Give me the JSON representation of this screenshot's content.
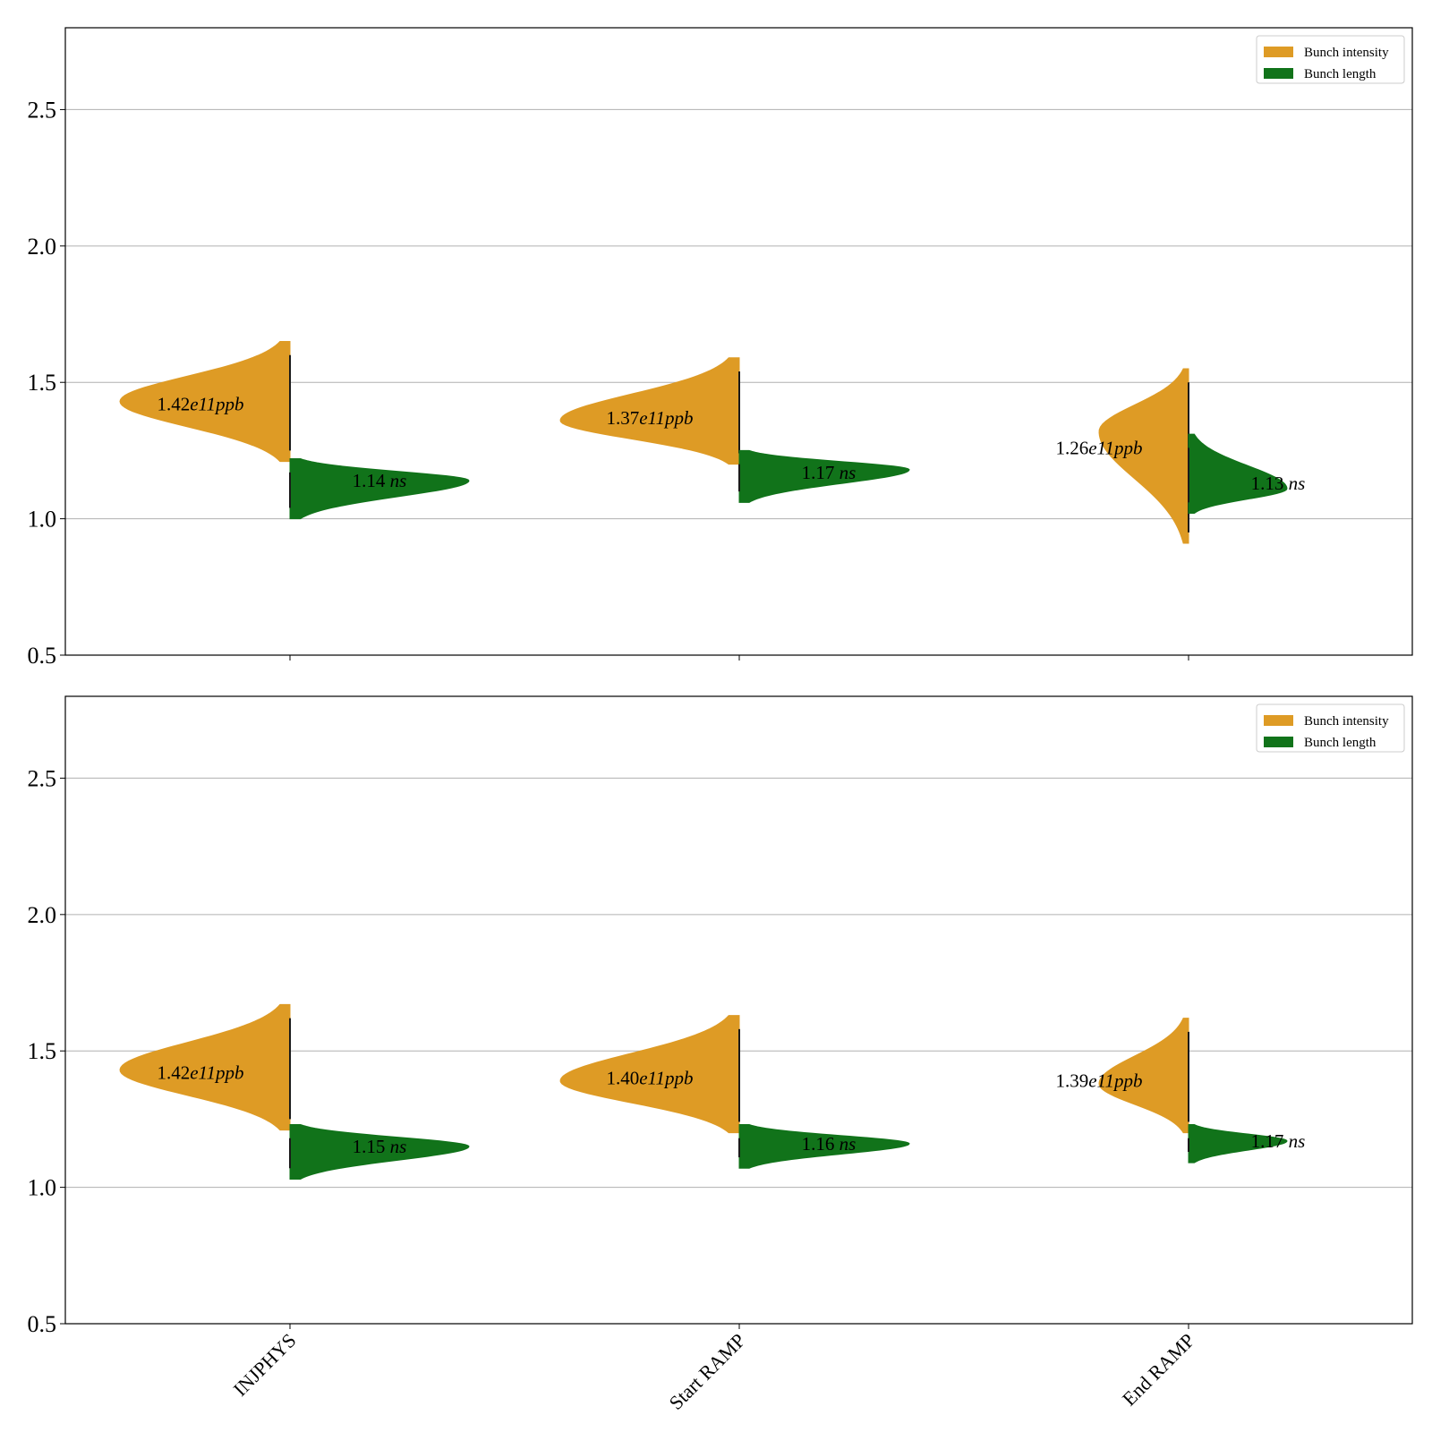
{
  "chart_data": [
    {
      "type": "violin",
      "ylim": [
        0.5,
        2.8
      ],
      "yticks": [
        0.5,
        1.0,
        1.5,
        2.0,
        2.5
      ],
      "grid": "y",
      "legend": "top-right",
      "legend_entries": [
        {
          "label": "Bunch intensity",
          "color": "#de9b25"
        },
        {
          "label": "Bunch length",
          "color": "#11731a"
        }
      ],
      "categories": [
        "INJPHYS",
        "Start RAMP",
        "End RAMP"
      ],
      "show_category_labels": false,
      "series": [
        {
          "name": "Bunch intensity",
          "color": "#de9b25",
          "side": "left",
          "distributions": [
            {
              "min": 1.21,
              "mode": 1.43,
              "max": 1.65,
              "label_number": "1.42",
              "label_mid": "e11",
              "label_unit": "ppb",
              "label_y": 1.42
            },
            {
              "min": 1.2,
              "mode": 1.36,
              "max": 1.59,
              "label_number": "1.37",
              "label_mid": "e11",
              "label_unit": "ppb",
              "label_y": 1.37
            },
            {
              "min": 0.91,
              "mode": 1.32,
              "max": 1.55,
              "label_number": "1.26",
              "label_mid": "e11",
              "label_unit": "ppb",
              "label_y": 1.26
            }
          ]
        },
        {
          "name": "Bunch length",
          "color": "#11731a",
          "side": "right",
          "distributions": [
            {
              "min": 1.0,
              "mode": 1.14,
              "max": 1.22,
              "label_number": "1.14",
              "label_mid": " ",
              "label_unit": "ns",
              "label_y": 1.14
            },
            {
              "min": 1.06,
              "mode": 1.18,
              "max": 1.25,
              "label_number": "1.17",
              "label_mid": " ",
              "label_unit": "ns",
              "label_y": 1.17
            },
            {
              "min": 1.02,
              "mode": 1.11,
              "max": 1.31,
              "label_number": "1.13",
              "label_mid": " ",
              "label_unit": "ns",
              "label_y": 1.13
            }
          ]
        }
      ]
    },
    {
      "type": "violin",
      "ylim": [
        0.5,
        2.8
      ],
      "yticks": [
        0.5,
        1.0,
        1.5,
        2.0,
        2.5
      ],
      "grid": "y",
      "legend": "top-right",
      "legend_entries": [
        {
          "label": "Bunch intensity",
          "color": "#de9b25"
        },
        {
          "label": "Bunch length",
          "color": "#11731a"
        }
      ],
      "categories": [
        "INJPHYS",
        "Start RAMP",
        "End RAMP"
      ],
      "show_category_labels": true,
      "series": [
        {
          "name": "Bunch intensity",
          "color": "#de9b25",
          "side": "left",
          "distributions": [
            {
              "min": 1.21,
              "mode": 1.43,
              "max": 1.67,
              "label_number": "1.42",
              "label_mid": "e11",
              "label_unit": "ppb",
              "label_y": 1.42
            },
            {
              "min": 1.2,
              "mode": 1.39,
              "max": 1.63,
              "label_number": "1.40",
              "label_mid": "e11",
              "label_unit": "ppb",
              "label_y": 1.4
            },
            {
              "min": 1.2,
              "mode": 1.38,
              "max": 1.62,
              "label_number": "1.39",
              "label_mid": "e11",
              "label_unit": "ppb",
              "label_y": 1.39
            }
          ]
        },
        {
          "name": "Bunch length",
          "color": "#11731a",
          "side": "right",
          "distributions": [
            {
              "min": 1.03,
              "mode": 1.15,
              "max": 1.23,
              "label_number": "1.15",
              "label_mid": " ",
              "label_unit": "ns",
              "label_y": 1.15
            },
            {
              "min": 1.07,
              "mode": 1.16,
              "max": 1.23,
              "label_number": "1.16",
              "label_mid": " ",
              "label_unit": "ns",
              "label_y": 1.16
            },
            {
              "min": 1.09,
              "mode": 1.17,
              "max": 1.23,
              "label_number": "1.17",
              "label_mid": " ",
              "label_unit": "ns",
              "label_y": 1.17
            }
          ]
        }
      ]
    }
  ]
}
